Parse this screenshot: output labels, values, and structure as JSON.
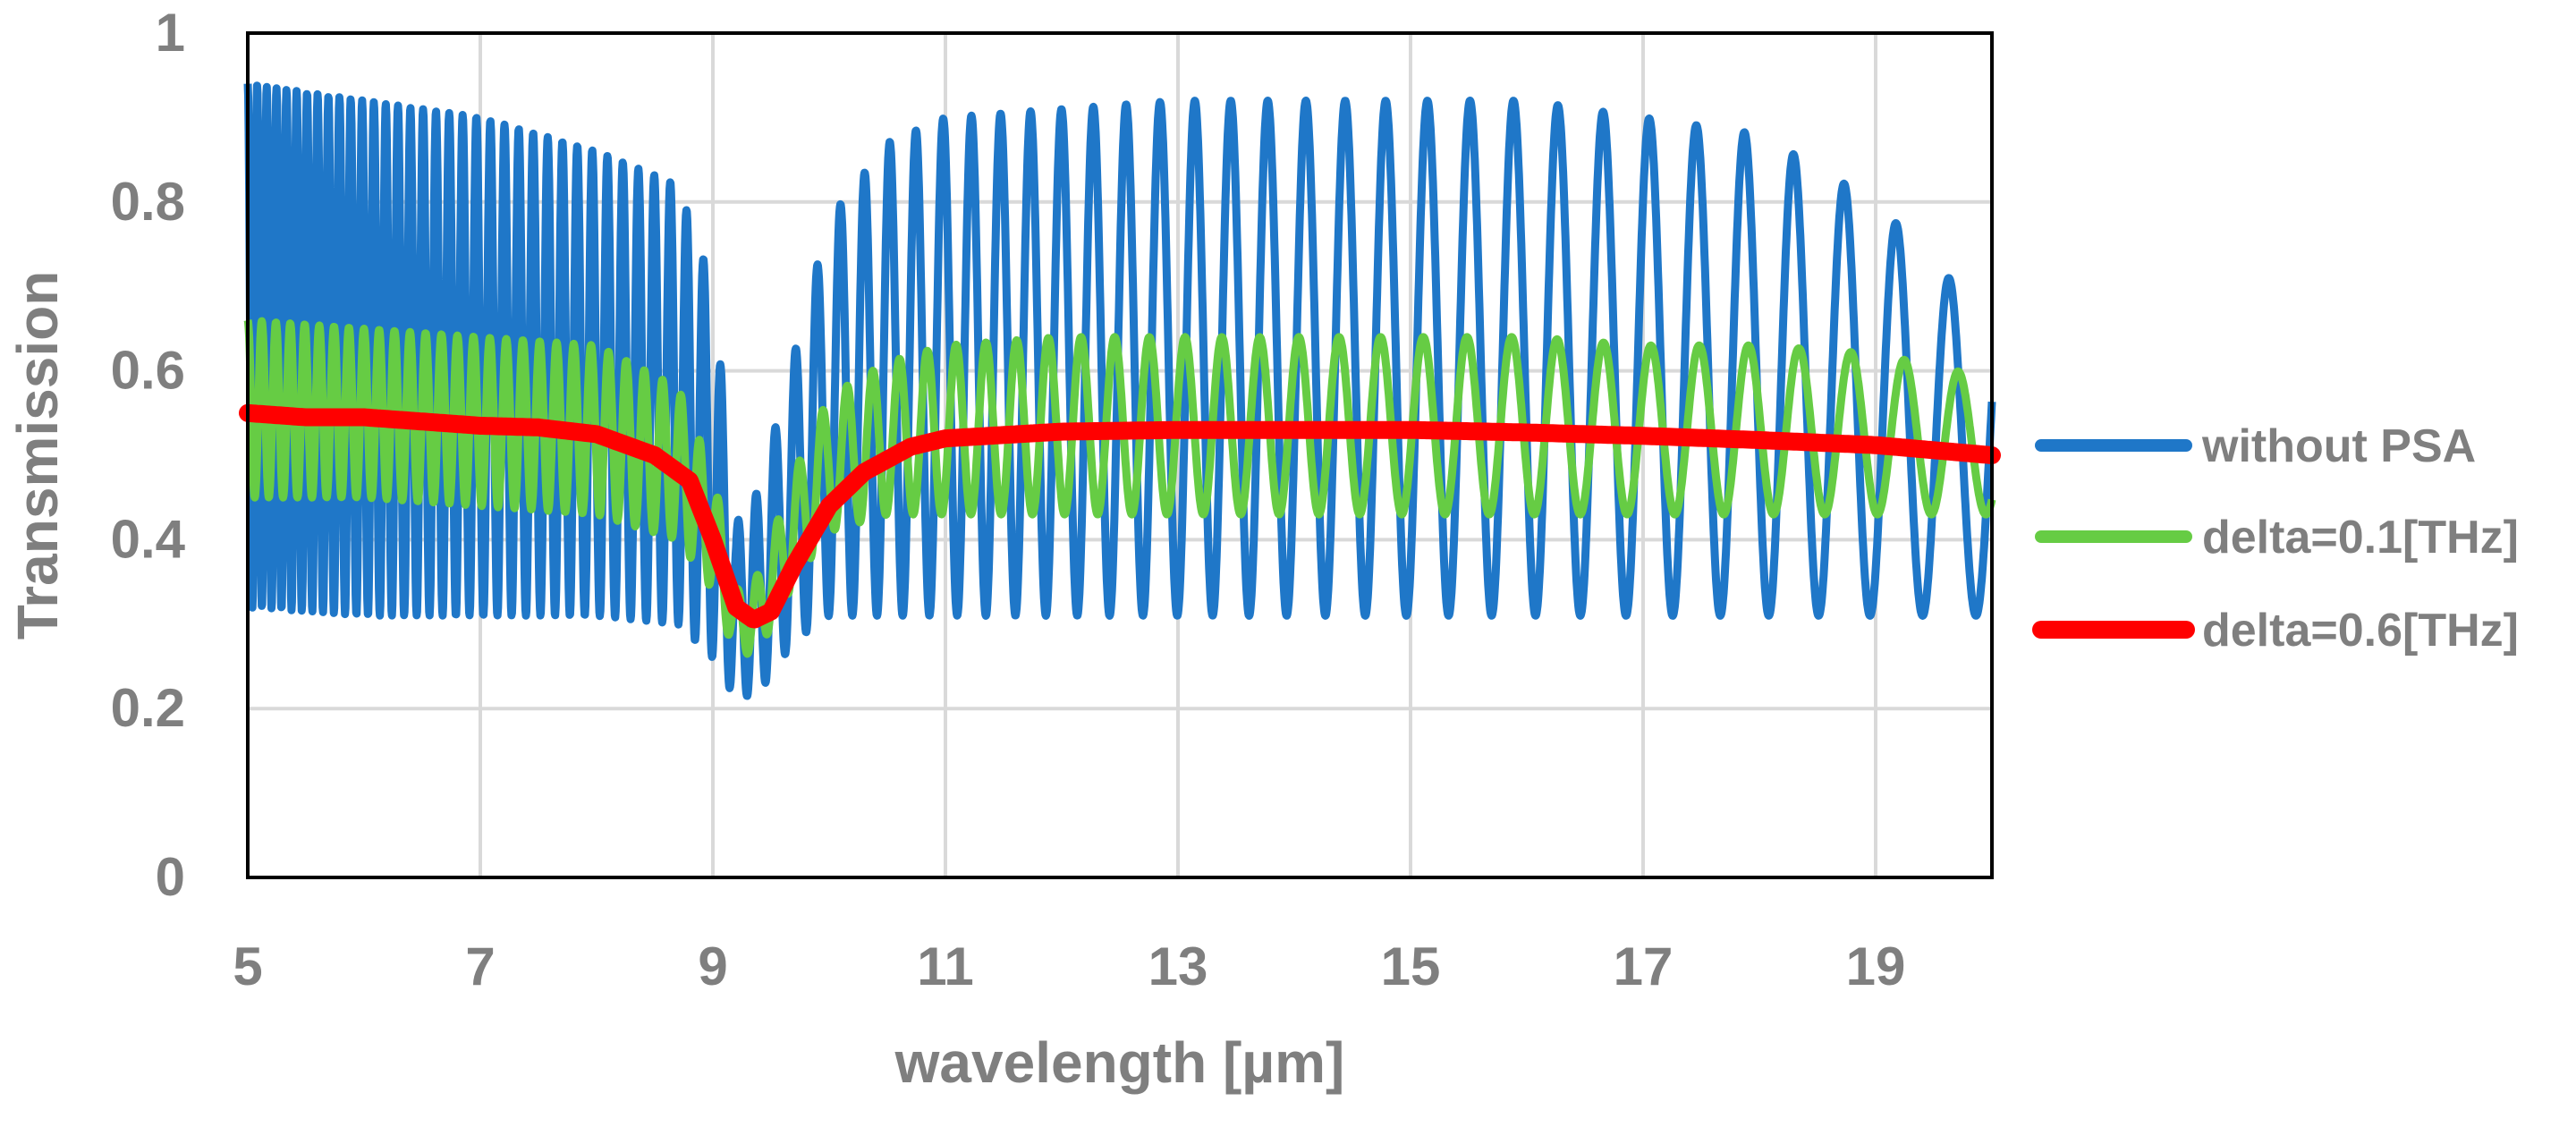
{
  "chart_data": {
    "type": "line",
    "xlabel": "wavelength [µm]",
    "ylabel": "Transmission",
    "xlim": [
      5,
      20
    ],
    "ylim": [
      0,
      1
    ],
    "xticks": [
      5,
      7,
      9,
      11,
      13,
      15,
      17,
      19
    ],
    "yticks": [
      0,
      0.2,
      0.4,
      0.6,
      0.8,
      1
    ],
    "ytick_labels": [
      "0",
      "0.2",
      "0.4",
      "0.6",
      "0.8",
      "1"
    ],
    "grid": true,
    "legend_position": "right",
    "series": [
      {
        "name": "without PSA",
        "color": "#1f77c8",
        "style": "fast oscillation between lower and upper envelopes",
        "x": [
          5,
          6,
          7,
          8,
          8.7,
          9.0,
          9.2,
          9.4,
          9.7,
          10.0,
          10.5,
          11,
          12,
          13,
          14,
          15,
          16,
          17,
          18,
          19,
          19.7,
          20
        ],
        "upper": [
          0.94,
          0.92,
          0.9,
          0.86,
          0.82,
          0.7,
          0.42,
          0.46,
          0.62,
          0.78,
          0.87,
          0.9,
          0.91,
          0.92,
          0.92,
          0.92,
          0.92,
          0.9,
          0.88,
          0.8,
          0.7,
          0.7
        ],
        "lower": [
          0.32,
          0.31,
          0.31,
          0.31,
          0.3,
          0.26,
          0.21,
          0.22,
          0.28,
          0.31,
          0.31,
          0.31,
          0.31,
          0.31,
          0.31,
          0.31,
          0.31,
          0.31,
          0.31,
          0.31,
          0.31,
          0.31
        ],
        "periods_um": [
          0.08,
          0.1,
          0.12,
          0.13,
          0.14,
          0.15,
          0.15,
          0.16,
          0.18,
          0.2,
          0.22,
          0.24,
          0.27,
          0.3,
          0.33,
          0.36,
          0.38,
          0.4,
          0.42,
          0.45,
          0.46,
          0.46
        ]
      },
      {
        "name": "delta=0.1[THz]",
        "color": "#66cc44",
        "style": "oscillation between lower and upper envelopes",
        "x": [
          5,
          6,
          7,
          8,
          8.7,
          9.0,
          9.2,
          9.4,
          9.7,
          10.0,
          10.5,
          11,
          12,
          13,
          14,
          15,
          16,
          17,
          18,
          19,
          19.7,
          20
        ],
        "upper": [
          0.66,
          0.65,
          0.64,
          0.63,
          0.58,
          0.48,
          0.34,
          0.36,
          0.48,
          0.57,
          0.61,
          0.63,
          0.64,
          0.64,
          0.64,
          0.64,
          0.64,
          0.63,
          0.63,
          0.62,
          0.6,
          0.58
        ],
        "lower": [
          0.45,
          0.45,
          0.44,
          0.43,
          0.4,
          0.34,
          0.26,
          0.27,
          0.35,
          0.41,
          0.43,
          0.43,
          0.43,
          0.43,
          0.43,
          0.43,
          0.43,
          0.43,
          0.43,
          0.43,
          0.43,
          0.43
        ],
        "periods_um": [
          0.12,
          0.13,
          0.14,
          0.15,
          0.16,
          0.16,
          0.17,
          0.17,
          0.19,
          0.21,
          0.23,
          0.25,
          0.28,
          0.31,
          0.34,
          0.37,
          0.39,
          0.41,
          0.43,
          0.46,
          0.47,
          0.47
        ]
      },
      {
        "name": "delta=0.6[THz]",
        "color": "#ff0000",
        "x": [
          5,
          5.5,
          6,
          6.5,
          7,
          7.5,
          8,
          8.5,
          8.8,
          9.0,
          9.2,
          9.35,
          9.5,
          9.7,
          10.0,
          10.3,
          10.7,
          11,
          12,
          13,
          14,
          15,
          16,
          17,
          18,
          19,
          20
        ],
        "y": [
          0.55,
          0.545,
          0.545,
          0.54,
          0.535,
          0.533,
          0.525,
          0.5,
          0.47,
          0.4,
          0.32,
          0.305,
          0.315,
          0.37,
          0.44,
          0.48,
          0.51,
          0.52,
          0.528,
          0.53,
          0.53,
          0.53,
          0.527,
          0.523,
          0.518,
          0.512,
          0.5
        ]
      }
    ]
  }
}
